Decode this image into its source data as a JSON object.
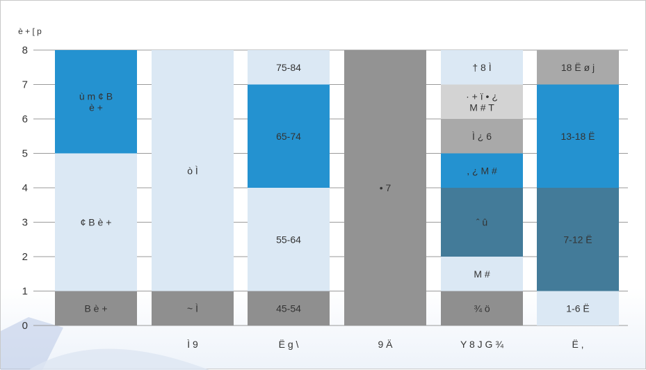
{
  "chart_data": {
    "type": "bar",
    "stacked": true,
    "ylabel": "è + [ p",
    "ylim": [
      0,
      8
    ],
    "yticks": [
      "0",
      "1",
      "2",
      "3",
      "4",
      "5",
      "6",
      "7",
      "8"
    ],
    "grid": true,
    "categories": [
      "",
      "Ì 9",
      "Ë g \\",
      "9 Ä",
      "Y 8 J G ¾",
      "Ë ,"
    ],
    "columns": [
      {
        "category": "",
        "segments": [
          {
            "from": 0,
            "to": 1,
            "label": "B è +",
            "color": "#8f8f8f"
          },
          {
            "from": 1,
            "to": 5,
            "label": "¢ B è +",
            "color": "#dbe8f4"
          },
          {
            "from": 5,
            "to": 8,
            "label": "ù m ¢ B\nè +",
            "color": "#2492d0"
          }
        ]
      },
      {
        "category": "Ì 9",
        "segments": [
          {
            "from": 0,
            "to": 1,
            "label": "~ Ì",
            "color": "#8f8f8f"
          },
          {
            "from": 1,
            "to": 8,
            "label": "ò Ì",
            "color": "#dbe8f4"
          }
        ]
      },
      {
        "category": "Ë g \\",
        "segments": [
          {
            "from": 0,
            "to": 1,
            "label": "45-54",
            "color": "#8f8f8f"
          },
          {
            "from": 1,
            "to": 4,
            "label": "55-64",
            "color": "#dbe8f4"
          },
          {
            "from": 4,
            "to": 7,
            "label": "65-74",
            "color": "#2492d0"
          },
          {
            "from": 7,
            "to": 8,
            "label": "75-84",
            "color": "#dbe8f4"
          }
        ]
      },
      {
        "category": "9 Ä",
        "segments": [
          {
            "from": 0,
            "to": 8,
            "label": "• 7",
            "color": "#939393"
          }
        ]
      },
      {
        "category": "Y 8 J G ¾",
        "segments": [
          {
            "from": 0,
            "to": 1,
            "label": "¾ ö",
            "color": "#8f8f8f"
          },
          {
            "from": 1,
            "to": 2,
            "label": "M #",
            "color": "#dbe8f4"
          },
          {
            "from": 2,
            "to": 4,
            "label": "ˆ û",
            "color": "#437b99"
          },
          {
            "from": 4,
            "to": 5,
            "label": ", ¿ M #",
            "color": "#2492d0"
          },
          {
            "from": 5,
            "to": 6,
            "label": "Ì ¿ 6",
            "color": "#a9a9a9"
          },
          {
            "from": 6,
            "to": 7,
            "label": "· + ï • ¿\nM # T",
            "color": "#d3d3d3"
          },
          {
            "from": 7,
            "to": 8,
            "label": "† 8 Ì",
            "color": "#dbe8f4"
          }
        ]
      },
      {
        "category": "Ë ,",
        "segments": [
          {
            "from": 0,
            "to": 1,
            "label": "1-6 Ë",
            "color": "#dbe8f4"
          },
          {
            "from": 1,
            "to": 4,
            "label": "7-12 Ë",
            "color": "#437b99"
          },
          {
            "from": 4,
            "to": 7,
            "label": "13-18 Ë",
            "color": "#2492d0"
          },
          {
            "from": 7,
            "to": 8,
            "label": "18 Ë ø j",
            "color": "#a9a9a9"
          }
        ]
      }
    ]
  }
}
